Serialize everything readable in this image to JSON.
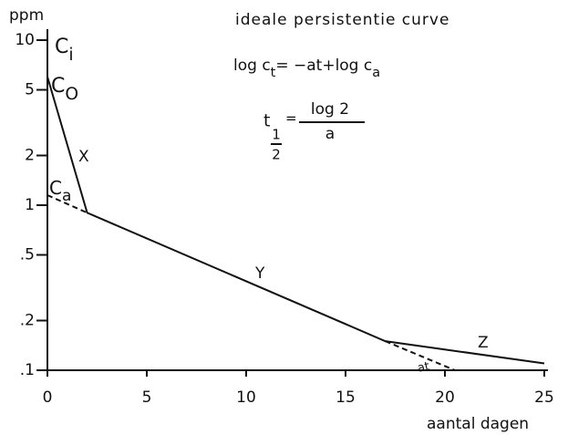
{
  "chart_data": {
    "type": "line",
    "y_unit_label": "ppm",
    "title": "ideale persistentie curve",
    "xlabel": "aantal dagen",
    "log_scale_y": true,
    "xlim": [
      0,
      25
    ],
    "xticks": [
      0,
      5,
      10,
      15,
      20,
      25
    ],
    "ylim": [
      0.1,
      10
    ],
    "yticks": [
      10,
      5,
      2,
      1,
      {
        "value": 0.5,
        "label": ".5"
      },
      {
        "value": 0.2,
        "label": ".2"
      },
      {
        "value": 0.1,
        "label": ".1"
      }
    ],
    "series": [
      {
        "color": "#111111",
        "style": "solid",
        "x": [
          0,
          2,
          17,
          25
        ],
        "values": [
          6,
          0.9,
          0.15,
          0.11
        ]
      },
      {
        "color": "#111111",
        "style": "dashed",
        "x": [
          0,
          2
        ],
        "values": [
          1.15,
          0.9
        ]
      },
      {
        "color": "#111111",
        "style": "dashed",
        "x": [
          17,
          20.5
        ],
        "values": [
          0.15,
          0.1
        ]
      }
    ],
    "annotations": [
      {
        "parts": [
          {
            "text": "C"
          },
          {
            "text": "i",
            "sub": true
          }
        ]
      },
      {
        "parts": [
          {
            "text": "C"
          },
          {
            "text": "O",
            "sub": true
          }
        ]
      },
      {
        "parts": [
          {
            "text": "X"
          }
        ]
      },
      {
        "parts": [
          {
            "text": "C"
          },
          {
            "text": "a",
            "sub": true
          }
        ]
      },
      {
        "parts": [
          {
            "text": "Y"
          }
        ]
      },
      {
        "parts": [
          {
            "text": "Z"
          }
        ]
      },
      {
        "parts": [
          {
            "text": "at"
          }
        ]
      },
      {
        "parts": [
          {
            "text": "log c"
          },
          {
            "text": "t",
            "sub": true
          },
          {
            "text": "= −at+log c"
          },
          {
            "text": "a",
            "sub": true
          }
        ]
      }
    ],
    "half_life_formula": {
      "symbol": "t",
      "sub_numerator": "1",
      "sub_denominator": "2",
      "equals": "=",
      "numerator": "log 2",
      "denominator": "a"
    }
  }
}
